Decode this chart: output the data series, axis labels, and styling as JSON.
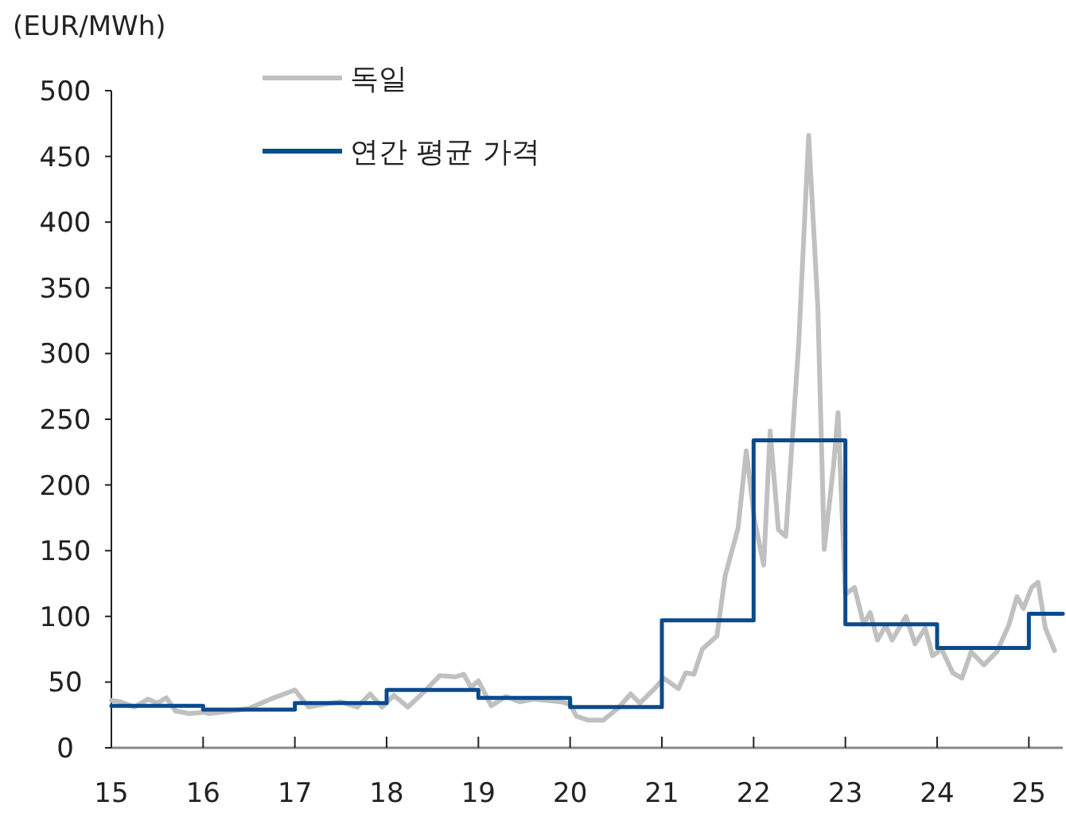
{
  "chart_data": {
    "type": "line",
    "ylabel": "(EUR/MWh)",
    "xlim": [
      15,
      25.37
    ],
    "xticks": [
      {
        "value": 15,
        "label": "15"
      },
      {
        "value": 16,
        "label": "16"
      },
      {
        "value": 17,
        "label": "17"
      },
      {
        "value": 18,
        "label": "18"
      },
      {
        "value": 19,
        "label": "19"
      },
      {
        "value": 20,
        "label": "20"
      },
      {
        "value": 21,
        "label": "21"
      },
      {
        "value": 22,
        "label": "22"
      },
      {
        "value": 23,
        "label": "23"
      },
      {
        "value": 24,
        "label": "24"
      },
      {
        "value": 25,
        "label": "25"
      }
    ],
    "ylim": [
      0,
      500
    ],
    "yticks": [
      0,
      50,
      100,
      150,
      200,
      250,
      300,
      350,
      400,
      450,
      500
    ],
    "grid": false,
    "legend": "top",
    "marker": "none",
    "series": [
      {
        "name": "독일",
        "color": "#c0c0c0",
        "x": [
          15.0,
          15.1,
          15.25,
          15.4,
          15.5,
          15.6,
          15.7,
          15.85,
          16.0,
          16.07,
          16.3,
          16.5,
          16.73,
          16.85,
          17.0,
          17.15,
          17.3,
          17.5,
          17.68,
          17.82,
          17.95,
          18.08,
          18.23,
          18.4,
          18.58,
          18.75,
          18.84,
          18.92,
          19.0,
          19.14,
          19.3,
          19.45,
          19.6,
          19.9,
          20.0,
          20.07,
          20.2,
          20.36,
          20.52,
          20.66,
          20.76,
          20.92,
          21.02,
          21.18,
          21.26,
          21.35,
          21.44,
          21.6,
          21.69,
          21.83,
          21.92,
          22.01,
          22.11,
          22.18,
          22.27,
          22.35,
          22.49,
          22.6,
          22.7,
          22.77,
          22.87,
          22.92,
          23.0,
          23.1,
          23.2,
          23.27,
          23.35,
          23.44,
          23.51,
          23.66,
          23.76,
          23.87,
          23.95,
          24.05,
          24.17,
          24.27,
          24.37,
          24.51,
          24.65,
          24.78,
          24.87,
          24.94,
          25.03,
          25.1,
          25.18,
          25.28
        ],
        "values": [
          36,
          35,
          31,
          37,
          34,
          38,
          28,
          26,
          27,
          26,
          28,
          30,
          37,
          40,
          44,
          31,
          33,
          35,
          31,
          41,
          31,
          40,
          31,
          42,
          55,
          54,
          56,
          46,
          51,
          32,
          39,
          35,
          37,
          35,
          33,
          24,
          21,
          21,
          30,
          41,
          34,
          45,
          53,
          45,
          57,
          56,
          75,
          85,
          131,
          167,
          226,
          173,
          139,
          241,
          166,
          161,
          306,
          466,
          335,
          151,
          214,
          255,
          117,
          122,
          94,
          103,
          82,
          93,
          82,
          100,
          79,
          91,
          70,
          75,
          57,
          53,
          73,
          63,
          73,
          93,
          115,
          106,
          122,
          126,
          91,
          74
        ]
      },
      {
        "name": "연간 평균 가격",
        "color": "#0b4a8b",
        "type": "step",
        "x": [
          15,
          16,
          17,
          18,
          19,
          20,
          21,
          22,
          23,
          24,
          25,
          25.37
        ],
        "values": [
          32,
          29,
          34,
          44,
          38,
          31,
          97,
          234,
          94,
          76,
          102,
          102
        ]
      }
    ]
  }
}
